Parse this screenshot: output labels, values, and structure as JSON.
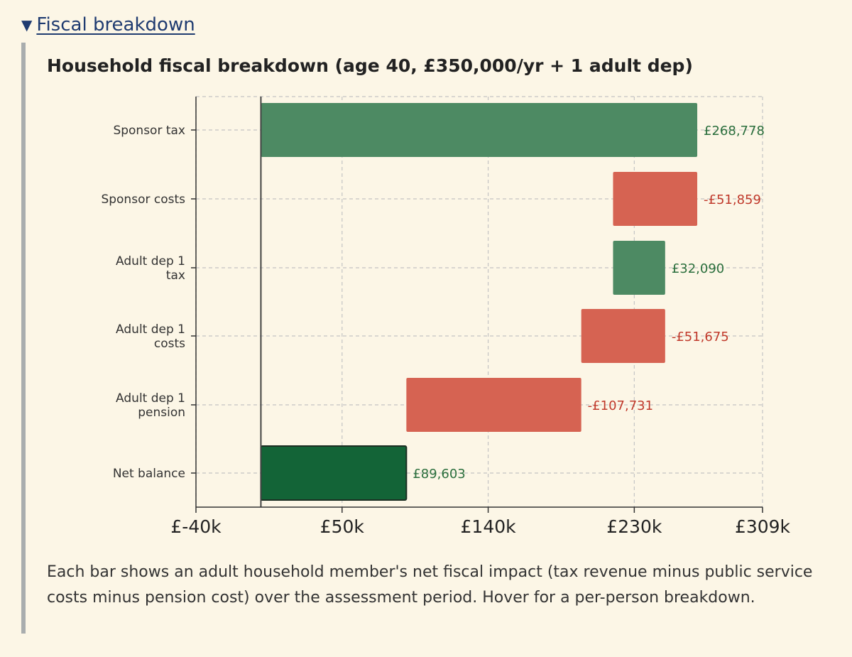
{
  "details": {
    "summary_label": "Fiscal breakdown",
    "toggle_icon": "triangle-down-icon",
    "link_color": "#1f3b70"
  },
  "chart_title": "Household fiscal breakdown (age 40, £350,000/yr + 1 adult dep)",
  "caption": "Each bar shows an adult household member's net fiscal impact (tax revenue minus public service costs minus pension cost) over the assessment period. Hover for a per-person breakdown.",
  "colors": {
    "positive": "#4d8a63",
    "negative": "#d66352",
    "net": "#136437",
    "positive_label": "#2a6e3c",
    "negative_label": "#c0392b"
  },
  "chart_data": {
    "type": "waterfall",
    "orientation": "horizontal",
    "title": "Household fiscal breakdown (age 40, £350,000/yr + 1 adult dep)",
    "categories": [
      [
        "Sponsor tax"
      ],
      [
        "Sponsor costs"
      ],
      [
        "Adult dep 1",
        "tax"
      ],
      [
        "Adult dep 1",
        "costs"
      ],
      [
        "Adult dep 1",
        "pension"
      ],
      [
        "Net balance"
      ]
    ],
    "bars": [
      {
        "start": 0,
        "end": 268778,
        "value_label": "£268,778",
        "kind": "positive"
      },
      {
        "start": 216919,
        "end": 268778,
        "value_label": "-£51,859",
        "kind": "negative"
      },
      {
        "start": 216919,
        "end": 249009,
        "value_label": "£32,090",
        "kind": "positive"
      },
      {
        "start": 197334,
        "end": 249009,
        "value_label": "-£51,675",
        "kind": "negative"
      },
      {
        "start": 89603,
        "end": 197334,
        "value_label": "-£107,731",
        "kind": "negative"
      },
      {
        "start": 0,
        "end": 89603,
        "value_label": "£89,603",
        "kind": "net"
      }
    ],
    "xlim": [
      -40000,
      309000
    ],
    "x_ticks": [
      -40000,
      50000,
      140000,
      230000,
      309000
    ],
    "x_tick_labels": [
      "£-40k",
      "£50k",
      "£140k",
      "£230k",
      "£309k"
    ],
    "grid": true,
    "zero_line": true
  }
}
